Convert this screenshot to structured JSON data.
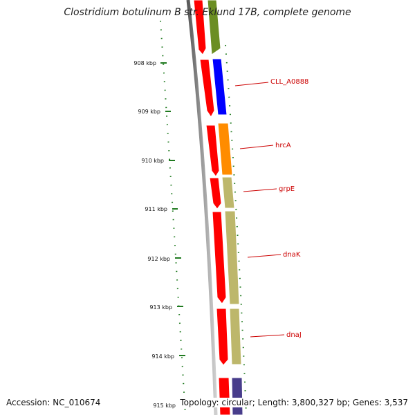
{
  "title": "Clostridium botulinum B str. Eklund 17B, complete genome",
  "accession": "Accession: NC_010674",
  "summary": "Topology: circular; Length: 3,800,327 bp; Genes: 3,537",
  "colors": {
    "backbone": "#8a8a8a",
    "tick": "#1f7a1f",
    "label": "#cc0000",
    "cds_red": "#ff0000",
    "olive": "#6b8e23",
    "blue": "#0000ff",
    "orange": "#ff8c00",
    "khaki": "#bdb76b",
    "slate": "#483d8b"
  },
  "ruler": {
    "ticks": [
      "908 kbp",
      "909 kbp",
      "910 kbp",
      "911 kbp",
      "912 kbp",
      "913 kbp",
      "914 kbp",
      "915 kbp"
    ]
  },
  "genes": [
    {
      "label": "CLL_A0888",
      "color": "#0000ff"
    },
    {
      "label": "hrcA",
      "color": "#ff8c00"
    },
    {
      "label": "grpE",
      "color": "#bdb76b"
    },
    {
      "label": "dnaK",
      "color": "#bdb76b"
    },
    {
      "label": "dnaJ",
      "color": "#bdb76b"
    }
  ],
  "unlabeled_features": [
    {
      "icon": "gene-arrow",
      "color": "#6b8e23"
    },
    {
      "icon": "gene-arrow",
      "color": "#483d8b"
    }
  ]
}
